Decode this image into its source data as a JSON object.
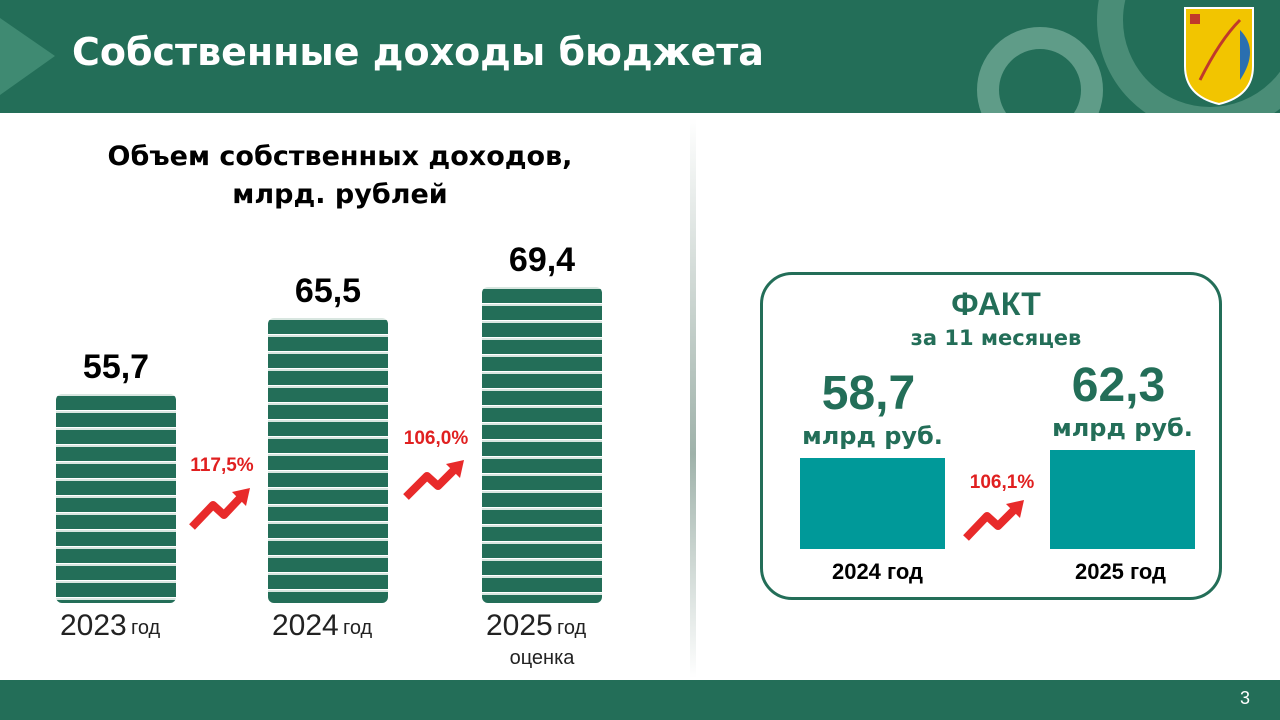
{
  "header": {
    "title": "Собственные доходы бюджета",
    "page_number": "3"
  },
  "chart_data": [
    {
      "type": "bar",
      "title": "Объем собственных доходов, млрд. рублей",
      "categories": [
        "2023",
        "2024",
        "2025"
      ],
      "category_unit": "год",
      "estimate_label": "оценка",
      "values": [
        55.7,
        65.5,
        69.4
      ],
      "value_labels": [
        "55,7",
        "65,5",
        "69,4"
      ],
      "annotations": [
        "117,5%",
        "106,0%"
      ],
      "color": "#236e58",
      "ylim": [
        29,
        72
      ]
    },
    {
      "type": "bar",
      "title": "ФАКТ",
      "subtitle": "за 11 месяцев",
      "categories": [
        "2024 год",
        "2025 год"
      ],
      "values": [
        58.7,
        62.3
      ],
      "value_labels": [
        "58,7",
        "62,3"
      ],
      "unit": "млрд руб.",
      "annotations": [
        "106,1%"
      ],
      "color": "#009999",
      "ylim": [
        17,
        64
      ]
    }
  ]
}
